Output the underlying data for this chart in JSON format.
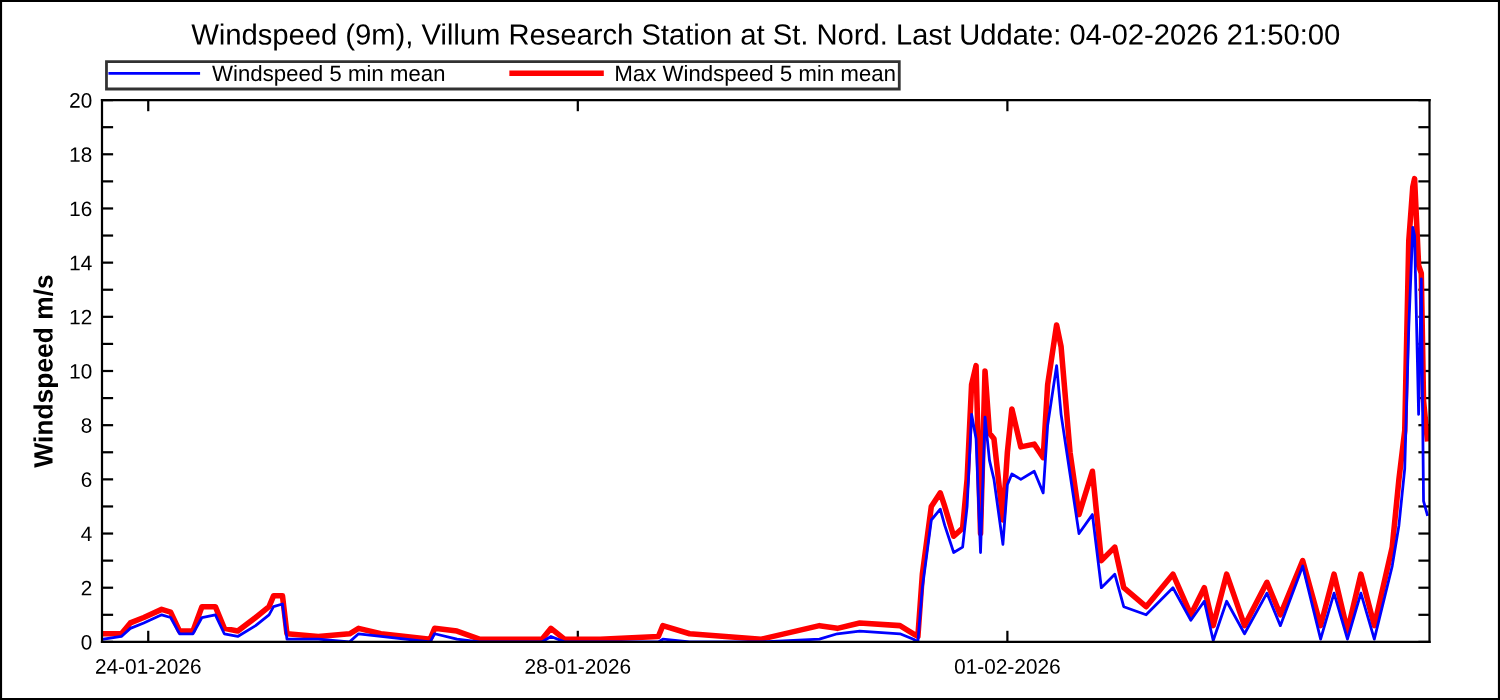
{
  "chart_data": {
    "type": "line",
    "title": "Windspeed (9m), Villum Research Station at St. Nord. Last Uddate: 04-02-2026 21:50:00",
    "ylabel": "Windspeed m/s",
    "x": [
      "2026-01-23T14:00",
      "2026-01-23T18:00",
      "2026-01-23T20:00",
      "2026-01-23T23:00",
      "2026-01-24T03:00",
      "2026-01-24T05:00",
      "2026-01-24T07:00",
      "2026-01-24T10:00",
      "2026-01-24T12:00",
      "2026-01-24T15:00",
      "2026-01-24T17:00",
      "2026-01-24T20:00",
      "2026-01-25T00:00",
      "2026-01-25T03:00",
      "2026-01-25T04:00",
      "2026-01-25T06:00",
      "2026-01-25T07:00",
      "2026-01-25T14:00",
      "2026-01-25T21:00",
      "2026-01-25T23:00",
      "2026-01-26T04:00",
      "2026-01-26T15:00",
      "2026-01-26T16:00",
      "2026-01-26T21:00",
      "2026-01-27T02:00",
      "2026-01-27T16:00",
      "2026-01-27T18:00",
      "2026-01-27T21:00",
      "2026-01-28T05:00",
      "2026-01-28T18:00",
      "2026-01-28T19:00",
      "2026-01-29T01:00",
      "2026-01-29T17:00",
      "2026-01-30T06:00",
      "2026-01-30T10:00",
      "2026-01-30T15:00",
      "2026-01-31T00:00",
      "2026-01-31T03:00",
      "2026-01-31T04:00",
      "2026-01-31T05:00",
      "2026-01-31T07:00",
      "2026-01-31T09:00",
      "2026-01-31T10:00",
      "2026-01-31T12:00",
      "2026-01-31T14:00",
      "2026-01-31T15:00",
      "2026-01-31T16:00",
      "2026-01-31T17:00",
      "2026-01-31T18:00",
      "2026-01-31T19:00",
      "2026-01-31T20:00",
      "2026-01-31T21:00",
      "2026-01-31T23:00",
      "2026-02-01T00:00",
      "2026-02-01T01:00",
      "2026-02-01T03:00",
      "2026-02-01T06:00",
      "2026-02-01T08:00",
      "2026-02-01T09:00",
      "2026-02-01T11:00",
      "2026-02-01T12:00",
      "2026-02-01T14:00",
      "2026-02-01T16:00",
      "2026-02-01T19:00",
      "2026-02-01T21:00",
      "2026-02-02T00:00",
      "2026-02-02T02:00",
      "2026-02-02T07:00",
      "2026-02-02T13:00",
      "2026-02-02T17:00",
      "2026-02-02T20:00",
      "2026-02-02T22:00",
      "2026-02-03T01:00",
      "2026-02-03T05:00",
      "2026-02-03T10:00",
      "2026-02-03T13:00",
      "2026-02-03T18:00",
      "2026-02-03T22:00",
      "2026-02-04T01:00",
      "2026-02-04T04:00",
      "2026-02-04T07:00",
      "2026-02-04T10:00",
      "2026-02-04T14:00",
      "2026-02-04T15:30",
      "2026-02-04T16:48",
      "2026-02-04T17:42",
      "2026-02-04T18:36",
      "2026-02-04T19:00",
      "2026-02-04T19:54",
      "2026-02-04T20:30",
      "2026-02-04T21:00",
      "2026-02-04T21:50"
    ],
    "series": [
      {
        "name": "Max Windspeed 5 min mean",
        "color": "#ff0000",
        "values": [
          0.3,
          0.3,
          0.7,
          0.9,
          1.2,
          1.1,
          0.4,
          0.4,
          1.3,
          1.3,
          0.5,
          0.4,
          0.9,
          1.3,
          1.7,
          1.7,
          0.3,
          0.2,
          0.3,
          0.5,
          0.3,
          0.1,
          0.5,
          0.4,
          0.1,
          0.1,
          0.5,
          0.1,
          0.1,
          0.2,
          0.6,
          0.3,
          0.1,
          0.6,
          0.5,
          0.7,
          0.6,
          0.3,
          0.2,
          2.5,
          5.0,
          5.5,
          5.0,
          3.9,
          4.2,
          6.0,
          9.5,
          10.2,
          4.0,
          10.0,
          7.7,
          7.5,
          4.5,
          7.0,
          8.6,
          7.2,
          7.3,
          6.8,
          9.5,
          11.7,
          10.9,
          7.0,
          4.7,
          6.3,
          3.0,
          3.5,
          2.0,
          1.3,
          2.5,
          1.0,
          2.0,
          0.6,
          2.5,
          0.6,
          2.2,
          1.0,
          3.0,
          0.6,
          2.5,
          0.4,
          2.5,
          0.6,
          3.5,
          6.0,
          7.8,
          14.8,
          16.8,
          17.1,
          13.9,
          13.6,
          8.9,
          7.5
        ]
      },
      {
        "name": "Windspeed 5 min mean",
        "color": "#0000ff",
        "values": [
          0.1,
          0.2,
          0.5,
          0.7,
          1.0,
          0.9,
          0.3,
          0.3,
          0.9,
          1.0,
          0.3,
          0.2,
          0.6,
          1.0,
          1.3,
          1.4,
          0.1,
          0.1,
          0.0,
          0.3,
          0.2,
          0.0,
          0.3,
          0.1,
          0.0,
          0.0,
          0.2,
          0.0,
          0.0,
          0.0,
          0.1,
          0.0,
          0.0,
          0.1,
          0.3,
          0.4,
          0.3,
          0.1,
          0.0,
          2.0,
          4.5,
          4.9,
          4.3,
          3.3,
          3.5,
          5.0,
          8.4,
          7.5,
          3.3,
          8.3,
          6.7,
          6.0,
          3.6,
          5.8,
          6.2,
          6.0,
          6.3,
          5.5,
          8.0,
          10.2,
          8.4,
          6.2,
          4.0,
          4.7,
          2.0,
          2.5,
          1.3,
          1.0,
          2.0,
          0.8,
          1.5,
          0.05,
          1.5,
          0.3,
          1.8,
          0.6,
          2.8,
          0.1,
          1.8,
          0.1,
          1.8,
          0.1,
          2.8,
          4.3,
          6.4,
          11.6,
          15.3,
          15.0,
          8.4,
          13.4,
          5.2,
          4.7
        ]
      }
    ],
    "xlim": [
      "2026-01-23T13:40",
      "2026-02-04T22:20"
    ],
    "xticks": [
      {
        "value": "2026-01-24",
        "label": "24-01-2026"
      },
      {
        "value": "2026-01-28",
        "label": "28-01-2026"
      },
      {
        "value": "2026-02-01",
        "label": "01-02-2026"
      }
    ],
    "ylim": [
      0,
      20
    ],
    "yticks": [
      0,
      {
        "value": 1,
        "label": null
      },
      2,
      {
        "value": 3,
        "label": null
      },
      4,
      {
        "value": 5,
        "label": null
      },
      6,
      {
        "value": 7,
        "label": null
      },
      8,
      {
        "value": 9,
        "label": null
      },
      10,
      {
        "value": 11,
        "label": null
      },
      12,
      {
        "value": 13,
        "label": null
      },
      14,
      {
        "value": 15,
        "label": null
      },
      16,
      {
        "value": 17,
        "label": null
      },
      18,
      {
        "value": 19,
        "label": null
      },
      20
    ],
    "legend": "top left",
    "grid": false,
    "marker": "none",
    "line_style": "solid"
  }
}
